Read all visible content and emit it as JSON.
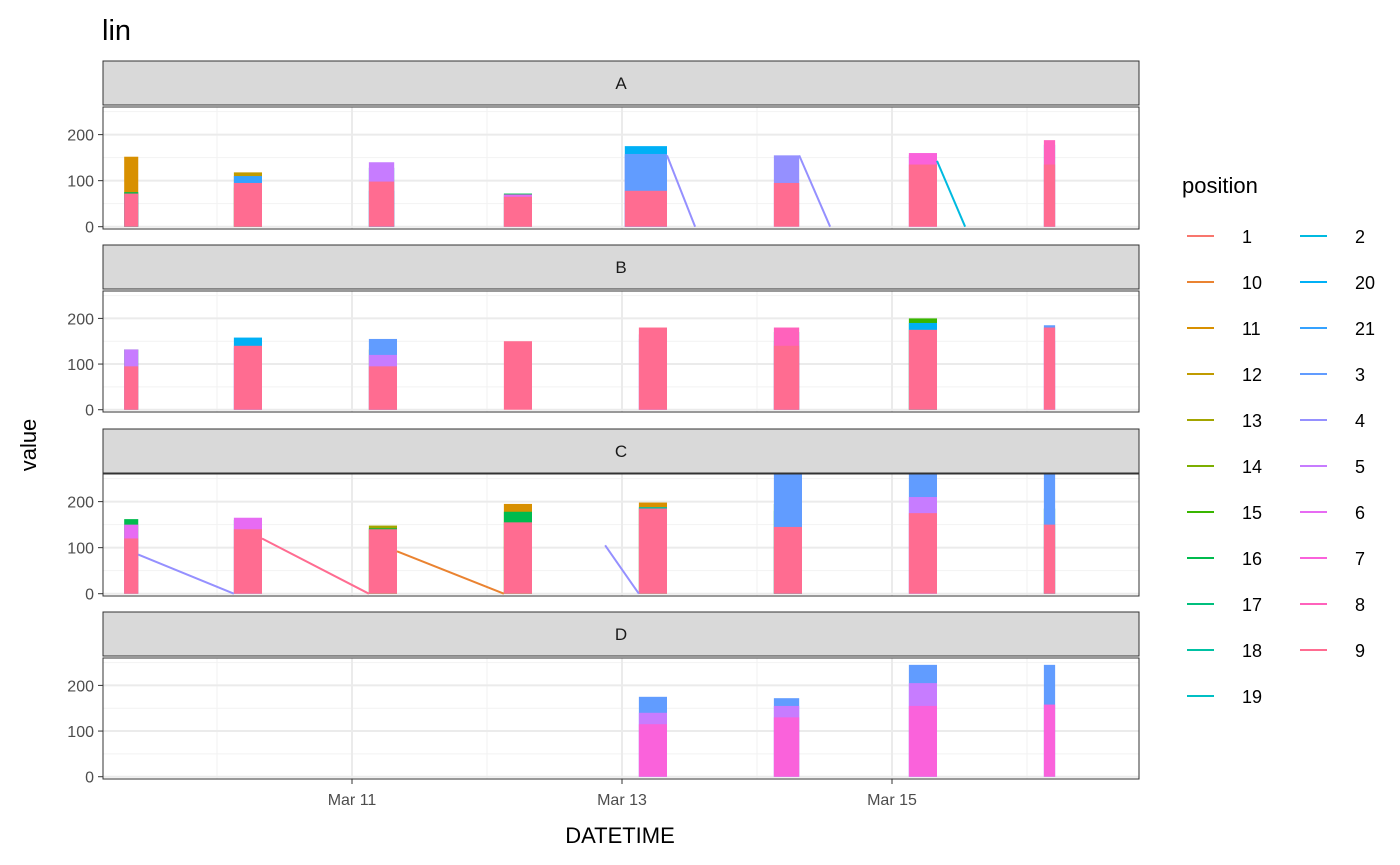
{
  "chart_data": {
    "type": "line",
    "title": "lin",
    "xlabel": "DATETIME",
    "ylabel": "value",
    "x_ticks": [
      "Mar 11",
      "Mar 13",
      "Mar 15"
    ],
    "y_ticks": [
      0,
      100,
      200
    ],
    "ylim": [
      -5,
      260
    ],
    "xlim": [
      "2019-03-09 00:00",
      "2019-03-16 18:00"
    ],
    "grid": true,
    "legend_position": "right",
    "legend_title": "position",
    "colors": {
      "1": "#F8766D",
      "10": "#EA8331",
      "11": "#D89000",
      "12": "#C09B00",
      "13": "#A3A500",
      "14": "#7CAE00",
      "15": "#39B600",
      "16": "#00BB4E",
      "17": "#00BF7D",
      "18": "#00C1A3",
      "19": "#00BFC4",
      "2": "#00BAE0",
      "20": "#00B0F6",
      "21": "#35A2FF",
      "3": "#619CFF",
      "4": "#9590FF",
      "5": "#C77CFF",
      "6": "#E76BF3",
      "7": "#FA62DB",
      "8": "#FF62BC",
      "9": "#FF6C91"
    },
    "legend_items": [
      "1",
      "10",
      "11",
      "12",
      "13",
      "14",
      "15",
      "16",
      "17",
      "18",
      "19",
      "2",
      "20",
      "21",
      "3",
      "4",
      "5",
      "6",
      "7",
      "8",
      "9"
    ],
    "panels": [
      {
        "label": "A",
        "blocks": [
          {
            "start": "2019-03-09 07:30",
            "end": "2019-03-09 10:00",
            "layers": [
              [
                "11",
                152
              ],
              [
                "16",
                75
              ],
              [
                "20",
                68
              ],
              [
                "9",
                72
              ]
            ]
          },
          {
            "start": "2019-03-10 03:00",
            "end": "2019-03-10 08:00",
            "layers": [
              [
                "12",
                118
              ],
              [
                "11",
                85
              ],
              [
                "21",
                110
              ],
              [
                "9",
                95
              ]
            ]
          },
          {
            "start": "2019-03-11 03:00",
            "end": "2019-03-11 07:30",
            "layers": [
              [
                "18",
                128
              ],
              [
                "5",
                140
              ],
              [
                "20",
                78
              ],
              [
                "9",
                98
              ]
            ]
          },
          {
            "start": "2019-03-12 03:00",
            "end": "2019-03-12 08:00",
            "layers": [
              [
                "16",
                72
              ],
              [
                "6",
                70
              ],
              [
                "9",
                65
              ]
            ]
          },
          {
            "start": "2019-03-13 00:30",
            "end": "2019-03-13 08:00",
            "layers": [
              [
                "20",
                175
              ],
              [
                "5",
                155
              ],
              [
                "3",
                158
              ],
              [
                "9",
                78
              ]
            ]
          },
          {
            "start": "2019-03-14 03:00",
            "end": "2019-03-14 07:30",
            "layers": [
              [
                "4",
                155
              ],
              [
                "9",
                95
              ]
            ]
          },
          {
            "start": "2019-03-15 03:00",
            "end": "2019-03-15 08:00",
            "layers": [
              [
                "4",
                155
              ],
              [
                "7",
                160
              ],
              [
                "9",
                135
              ]
            ]
          },
          {
            "start": "2019-03-16 03:00",
            "end": "2019-03-16 05:00",
            "layers": [
              [
                "20",
                178
              ],
              [
                "8",
                188
              ],
              [
                "9",
                135
              ]
            ]
          }
        ],
        "lines": [
          {
            "series": "4",
            "points": [
              [
                "2019-03-13 08:00",
                155
              ],
              [
                "2019-03-13 13:00",
                0
              ]
            ]
          },
          {
            "series": "4",
            "points": [
              [
                "2019-03-14 07:30",
                155
              ],
              [
                "2019-03-14 13:00",
                0
              ]
            ]
          },
          {
            "series": "2",
            "points": [
              [
                "2019-03-15 08:00",
                143
              ],
              [
                "2019-03-15 13:00",
                0
              ]
            ]
          }
        ]
      },
      {
        "label": "B",
        "blocks": [
          {
            "start": "2019-03-09 07:30",
            "end": "2019-03-09 10:00",
            "layers": [
              [
                "16",
                132
              ],
              [
                "5",
                132
              ],
              [
                "9",
                95
              ]
            ]
          },
          {
            "start": "2019-03-10 03:00",
            "end": "2019-03-10 08:00",
            "layers": [
              [
                "20",
                158
              ],
              [
                "5",
                135
              ],
              [
                "9",
                140
              ]
            ]
          },
          {
            "start": "2019-03-11 03:00",
            "end": "2019-03-11 08:00",
            "layers": [
              [
                "13",
                132
              ],
              [
                "3",
                155
              ],
              [
                "5",
                120
              ],
              [
                "9",
                95
              ]
            ]
          },
          {
            "start": "2019-03-12 03:00",
            "end": "2019-03-12 08:00",
            "layers": [
              [
                "9",
                150
              ]
            ]
          },
          {
            "start": "2019-03-13 03:00",
            "end": "2019-03-13 08:00",
            "layers": [
              [
                "3",
                165
              ],
              [
                "5",
                155
              ],
              [
                "9",
                180
              ]
            ]
          },
          {
            "start": "2019-03-14 03:00",
            "end": "2019-03-14 07:30",
            "layers": [
              [
                "18",
                170
              ],
              [
                "3",
                150
              ],
              [
                "8",
                180
              ],
              [
                "9",
                140
              ]
            ]
          },
          {
            "start": "2019-03-15 03:00",
            "end": "2019-03-15 08:00",
            "layers": [
              [
                "15",
                200
              ],
              [
                "20",
                190
              ],
              [
                "9",
                175
              ]
            ]
          },
          {
            "start": "2019-03-16 03:00",
            "end": "2019-03-16 05:00",
            "layers": [
              [
                "3",
                185
              ],
              [
                "5",
                150
              ],
              [
                "9",
                180
              ]
            ]
          }
        ],
        "lines": []
      },
      {
        "label": "C",
        "blocks": [
          {
            "start": "2019-03-09 07:30",
            "end": "2019-03-09 10:00",
            "layers": [
              [
                "16",
                162
              ],
              [
                "6",
                150
              ],
              [
                "9",
                120
              ]
            ]
          },
          {
            "start": "2019-03-10 03:00",
            "end": "2019-03-10 08:00",
            "layers": [
              [
                "18",
                160
              ],
              [
                "6",
                165
              ],
              [
                "9",
                140
              ]
            ]
          },
          {
            "start": "2019-03-11 03:00",
            "end": "2019-03-11 08:00",
            "layers": [
              [
                "13",
                148
              ],
              [
                "16",
                142
              ],
              [
                "9",
                140
              ]
            ]
          },
          {
            "start": "2019-03-12 03:00",
            "end": "2019-03-12 08:00",
            "layers": [
              [
                "11",
                195
              ],
              [
                "16",
                178
              ],
              [
                "9",
                155
              ]
            ]
          },
          {
            "start": "2019-03-13 03:00",
            "end": "2019-03-13 08:00",
            "layers": [
              [
                "11",
                198
              ],
              [
                "18",
                188
              ],
              [
                "9",
                185
              ]
            ]
          },
          {
            "start": "2019-03-14 03:00",
            "end": "2019-03-14 08:00",
            "layers": [
              [
                "15",
                195
              ],
              [
                "17",
                180
              ],
              [
                "3",
                260
              ],
              [
                "9",
                145
              ]
            ]
          },
          {
            "start": "2019-03-15 03:00",
            "end": "2019-03-15 08:00",
            "layers": [
              [
                "3",
                260
              ],
              [
                "5",
                210
              ],
              [
                "9",
                175
              ]
            ]
          },
          {
            "start": "2019-03-16 03:00",
            "end": "2019-03-16 05:00",
            "layers": [
              [
                "16",
                185
              ],
              [
                "3",
                260
              ],
              [
                "9",
                150
              ]
            ]
          }
        ],
        "lines": [
          {
            "series": "4",
            "points": [
              [
                "2019-03-09 10:00",
                85
              ],
              [
                "2019-03-10 03:00",
                0
              ]
            ]
          },
          {
            "series": "9",
            "points": [
              [
                "2019-03-10 08:00",
                120
              ],
              [
                "2019-03-11 03:00",
                0
              ]
            ]
          },
          {
            "series": "10",
            "points": [
              [
                "2019-03-11 08:00",
                92
              ],
              [
                "2019-03-12 03:00",
                0
              ]
            ]
          },
          {
            "series": "4",
            "points": [
              [
                "2019-03-12 21:00",
                105
              ],
              [
                "2019-03-13 03:00",
                0
              ]
            ]
          }
        ]
      },
      {
        "label": "D",
        "blocks": [
          {
            "start": "2019-03-13 03:00",
            "end": "2019-03-13 08:00",
            "layers": [
              [
                "3",
                175
              ],
              [
                "5",
                140
              ],
              [
                "7",
                115
              ]
            ]
          },
          {
            "start": "2019-03-14 03:00",
            "end": "2019-03-14 07:30",
            "layers": [
              [
                "3",
                172
              ],
              [
                "5",
                155
              ],
              [
                "7",
                130
              ]
            ]
          },
          {
            "start": "2019-03-15 03:00",
            "end": "2019-03-15 08:00",
            "layers": [
              [
                "3",
                245
              ],
              [
                "5",
                205
              ],
              [
                "7",
                155
              ]
            ]
          },
          {
            "start": "2019-03-16 03:00",
            "end": "2019-03-16 05:00",
            "layers": [
              [
                "3",
                245
              ],
              [
                "7",
                158
              ]
            ]
          }
        ],
        "lines": []
      }
    ]
  }
}
